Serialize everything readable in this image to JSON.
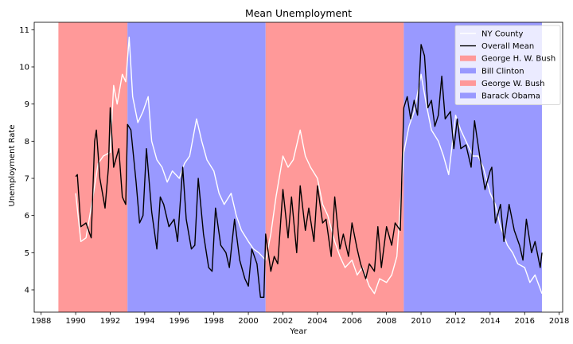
{
  "chart_data": {
    "type": "line",
    "title": "Mean Unemployment",
    "xlabel": "Year",
    "ylabel": "Unemployment Rate",
    "xlim": [
      1987.6,
      2018.2
    ],
    "ylim": [
      3.4,
      11.2
    ],
    "x_ticks": [
      1988,
      1990,
      1992,
      1994,
      1996,
      1998,
      2000,
      2002,
      2004,
      2006,
      2008,
      2010,
      2012,
      2014,
      2016,
      2018
    ],
    "y_ticks": [
      4,
      5,
      6,
      7,
      8,
      9,
      10,
      11
    ],
    "grid": false,
    "legend_position": "top-right",
    "shaded_periods": [
      {
        "name": "George H. W. Bush",
        "start": 1989.0,
        "end": 1993.0,
        "color": "#ff9999"
      },
      {
        "name": "Bill Clinton",
        "start": 1993.0,
        "end": 2001.0,
        "color": "#9999ff"
      },
      {
        "name": "George W. Bush",
        "start": 2001.0,
        "end": 2009.0,
        "color": "#ff9999"
      },
      {
        "name": "Barack Obama",
        "start": 2009.0,
        "end": 2017.0,
        "color": "#9999ff"
      }
    ],
    "series": [
      {
        "name": "NY County",
        "color": "#ffffff",
        "points": [
          [
            1990.0,
            6.6
          ],
          [
            1990.3,
            5.3
          ],
          [
            1990.6,
            5.4
          ],
          [
            1991.0,
            6.5
          ],
          [
            1991.3,
            7.4
          ],
          [
            1991.6,
            7.6
          ],
          [
            1992.0,
            7.7
          ],
          [
            1992.2,
            9.5
          ],
          [
            1992.4,
            9.0
          ],
          [
            1992.7,
            9.8
          ],
          [
            1992.9,
            9.6
          ],
          [
            1993.0,
            10.2
          ],
          [
            1993.1,
            10.8
          ],
          [
            1993.3,
            9.2
          ],
          [
            1993.6,
            8.5
          ],
          [
            1993.9,
            8.8
          ],
          [
            1994.2,
            9.2
          ],
          [
            1994.4,
            8.0
          ],
          [
            1994.7,
            7.5
          ],
          [
            1995.0,
            7.3
          ],
          [
            1995.3,
            6.9
          ],
          [
            1995.6,
            7.2
          ],
          [
            1996.0,
            7.0
          ],
          [
            1996.3,
            7.4
          ],
          [
            1996.6,
            7.6
          ],
          [
            1997.0,
            8.6
          ],
          [
            1997.3,
            8.0
          ],
          [
            1997.6,
            7.5
          ],
          [
            1998.0,
            7.2
          ],
          [
            1998.3,
            6.6
          ],
          [
            1998.6,
            6.3
          ],
          [
            1999.0,
            6.6
          ],
          [
            1999.3,
            6.0
          ],
          [
            1999.6,
            5.6
          ],
          [
            2000.0,
            5.3
          ],
          [
            2000.3,
            5.1
          ],
          [
            2000.6,
            5.0
          ],
          [
            2001.0,
            4.8
          ],
          [
            2001.3,
            5.5
          ],
          [
            2001.6,
            6.5
          ],
          [
            2002.0,
            7.6
          ],
          [
            2002.3,
            7.3
          ],
          [
            2002.6,
            7.5
          ],
          [
            2003.0,
            8.3
          ],
          [
            2003.3,
            7.6
          ],
          [
            2003.6,
            7.3
          ],
          [
            2004.0,
            7.0
          ],
          [
            2004.3,
            6.3
          ],
          [
            2004.6,
            6.0
          ],
          [
            2005.0,
            5.3
          ],
          [
            2005.3,
            4.9
          ],
          [
            2005.6,
            4.6
          ],
          [
            2006.0,
            4.8
          ],
          [
            2006.3,
            4.4
          ],
          [
            2006.6,
            4.6
          ],
          [
            2007.0,
            4.1
          ],
          [
            2007.3,
            3.9
          ],
          [
            2007.6,
            4.3
          ],
          [
            2008.0,
            4.2
          ],
          [
            2008.3,
            4.4
          ],
          [
            2008.6,
            4.9
          ],
          [
            2009.0,
            7.7
          ],
          [
            2009.3,
            8.4
          ],
          [
            2009.6,
            8.8
          ],
          [
            2010.0,
            9.8
          ],
          [
            2010.3,
            9.0
          ],
          [
            2010.6,
            8.3
          ],
          [
            2011.0,
            8.0
          ],
          [
            2011.3,
            7.6
          ],
          [
            2011.6,
            7.1
          ],
          [
            2012.0,
            8.7
          ],
          [
            2012.3,
            8.3
          ],
          [
            2012.6,
            8.0
          ],
          [
            2013.0,
            7.6
          ],
          [
            2013.3,
            7.6
          ],
          [
            2013.6,
            7.3
          ],
          [
            2014.0,
            6.6
          ],
          [
            2014.3,
            6.3
          ],
          [
            2014.6,
            5.7
          ],
          [
            2015.0,
            5.2
          ],
          [
            2015.3,
            5.0
          ],
          [
            2015.6,
            4.7
          ],
          [
            2016.0,
            4.6
          ],
          [
            2016.3,
            4.2
          ],
          [
            2016.6,
            4.4
          ],
          [
            2017.0,
            3.9
          ]
        ]
      },
      {
        "name": "Overall Mean",
        "color": "#000000",
        "points": [
          [
            1990.0,
            7.05
          ],
          [
            1990.1,
            7.1
          ],
          [
            1990.3,
            5.7
          ],
          [
            1990.6,
            5.8
          ],
          [
            1990.9,
            5.4
          ],
          [
            1991.1,
            8.0
          ],
          [
            1991.2,
            8.3
          ],
          [
            1991.4,
            7.0
          ],
          [
            1991.7,
            6.2
          ],
          [
            1991.9,
            7.3
          ],
          [
            1992.0,
            8.9
          ],
          [
            1992.2,
            7.3
          ],
          [
            1992.5,
            7.8
          ],
          [
            1992.7,
            6.5
          ],
          [
            1992.9,
            6.3
          ],
          [
            1993.0,
            8.45
          ],
          [
            1993.2,
            8.3
          ],
          [
            1993.5,
            6.9
          ],
          [
            1993.7,
            5.8
          ],
          [
            1993.9,
            6.0
          ],
          [
            1994.1,
            7.8
          ],
          [
            1994.4,
            6.1
          ],
          [
            1994.7,
            5.1
          ],
          [
            1994.9,
            6.5
          ],
          [
            1995.1,
            6.3
          ],
          [
            1995.4,
            5.7
          ],
          [
            1995.7,
            5.9
          ],
          [
            1995.9,
            5.3
          ],
          [
            1996.2,
            7.3
          ],
          [
            1996.4,
            5.9
          ],
          [
            1996.7,
            5.1
          ],
          [
            1996.9,
            5.2
          ],
          [
            1997.1,
            7.0
          ],
          [
            1997.4,
            5.5
          ],
          [
            1997.7,
            4.6
          ],
          [
            1997.9,
            4.5
          ],
          [
            1998.1,
            6.2
          ],
          [
            1998.4,
            5.2
          ],
          [
            1998.7,
            5.0
          ],
          [
            1998.9,
            4.6
          ],
          [
            1999.2,
            5.9
          ],
          [
            1999.5,
            4.8
          ],
          [
            1999.8,
            4.3
          ],
          [
            2000.0,
            4.1
          ],
          [
            2000.2,
            5.1
          ],
          [
            2000.5,
            4.7
          ],
          [
            2000.7,
            3.8
          ],
          [
            2000.9,
            3.8
          ],
          [
            2001.0,
            5.5
          ],
          [
            2001.3,
            4.5
          ],
          [
            2001.5,
            4.9
          ],
          [
            2001.7,
            4.7
          ],
          [
            2002.0,
            6.7
          ],
          [
            2002.3,
            5.4
          ],
          [
            2002.5,
            6.5
          ],
          [
            2002.8,
            5.0
          ],
          [
            2003.0,
            6.8
          ],
          [
            2003.3,
            5.6
          ],
          [
            2003.5,
            6.2
          ],
          [
            2003.8,
            5.3
          ],
          [
            2004.0,
            6.8
          ],
          [
            2004.3,
            5.8
          ],
          [
            2004.5,
            5.9
          ],
          [
            2004.8,
            4.9
          ],
          [
            2005.0,
            6.5
          ],
          [
            2005.3,
            5.1
          ],
          [
            2005.5,
            5.5
          ],
          [
            2005.8,
            4.9
          ],
          [
            2006.0,
            5.8
          ],
          [
            2006.3,
            5.1
          ],
          [
            2006.5,
            4.7
          ],
          [
            2006.8,
            4.3
          ],
          [
            2007.0,
            4.7
          ],
          [
            2007.3,
            4.5
          ],
          [
            2007.5,
            5.7
          ],
          [
            2007.7,
            4.6
          ],
          [
            2008.0,
            5.7
          ],
          [
            2008.3,
            5.2
          ],
          [
            2008.5,
            5.8
          ],
          [
            2008.8,
            5.6
          ],
          [
            2009.0,
            8.9
          ],
          [
            2009.2,
            9.2
          ],
          [
            2009.4,
            8.6
          ],
          [
            2009.6,
            9.1
          ],
          [
            2009.8,
            8.7
          ],
          [
            2010.0,
            10.6
          ],
          [
            2010.2,
            10.3
          ],
          [
            2010.4,
            8.9
          ],
          [
            2010.6,
            9.1
          ],
          [
            2010.8,
            8.4
          ],
          [
            2011.0,
            8.7
          ],
          [
            2011.2,
            9.75
          ],
          [
            2011.4,
            8.6
          ],
          [
            2011.7,
            8.8
          ],
          [
            2011.9,
            7.8
          ],
          [
            2012.1,
            8.6
          ],
          [
            2012.3,
            7.8
          ],
          [
            2012.6,
            7.9
          ],
          [
            2012.9,
            7.3
          ],
          [
            2013.1,
            8.55
          ],
          [
            2013.4,
            7.6
          ],
          [
            2013.7,
            6.7
          ],
          [
            2014.0,
            7.2
          ],
          [
            2014.1,
            7.3
          ],
          [
            2014.3,
            5.8
          ],
          [
            2014.6,
            6.3
          ],
          [
            2014.8,
            5.3
          ],
          [
            2015.1,
            6.3
          ],
          [
            2015.4,
            5.6
          ],
          [
            2015.7,
            5.2
          ],
          [
            2015.9,
            4.8
          ],
          [
            2016.1,
            5.9
          ],
          [
            2016.4,
            5.0
          ],
          [
            2016.6,
            5.3
          ],
          [
            2016.9,
            4.6
          ],
          [
            2017.0,
            5.0
          ]
        ]
      }
    ]
  }
}
